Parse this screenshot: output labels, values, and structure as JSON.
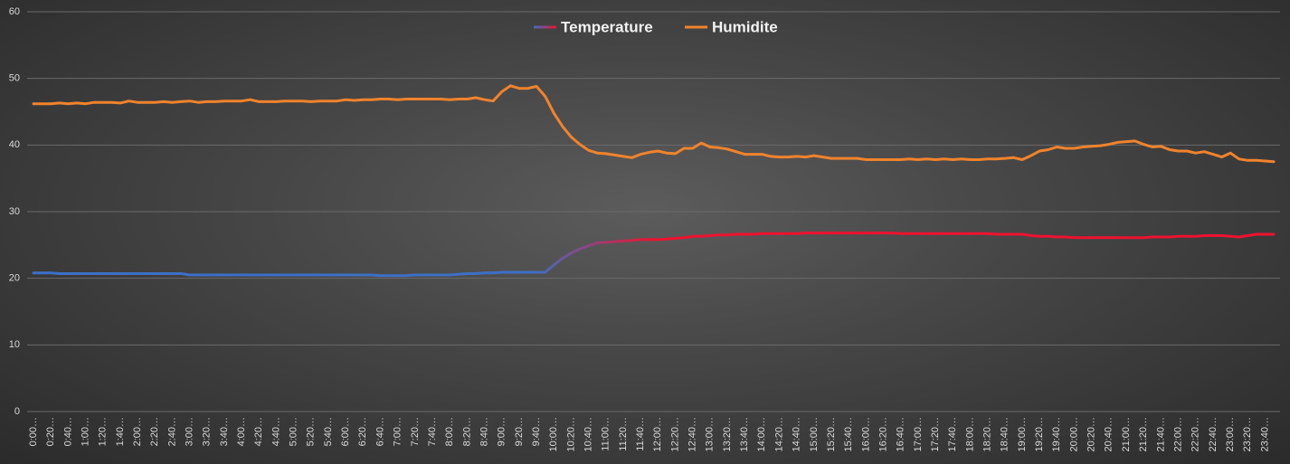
{
  "chart_data": {
    "type": "line",
    "categories": [
      "0:00…",
      null,
      "0:20…",
      null,
      "0:40…",
      null,
      "1:00…",
      null,
      "1:20…",
      null,
      "1:40…",
      null,
      "2:00…",
      null,
      "2:20…",
      null,
      "2:40…",
      null,
      "3:00…",
      null,
      "3:20…",
      null,
      "3:40…",
      null,
      "4:00…",
      null,
      "4:20…",
      null,
      "4:40…",
      null,
      "5:00…",
      null,
      "5:20…",
      null,
      "5:40…",
      null,
      "6:00…",
      null,
      "6:20…",
      null,
      "6:40…",
      null,
      "7:00…",
      null,
      "7:20…",
      null,
      "7:40…",
      null,
      "8:00…",
      null,
      "8:20…",
      null,
      "8:40…",
      null,
      "9:00…",
      null,
      "9:20…",
      null,
      "9:40…",
      null,
      "10:00…",
      null,
      "10:20…",
      null,
      "10:40…",
      null,
      "11:00…",
      null,
      "11:20…",
      null,
      "11:40…",
      null,
      "12:00…",
      null,
      "12:20…",
      null,
      "12:40…",
      null,
      "13:00…",
      null,
      "13:20…",
      null,
      "13:40…",
      null,
      "14:00…",
      null,
      "14:20…",
      null,
      "14:40…",
      null,
      "15:00…",
      null,
      "15:20…",
      null,
      "15:40…",
      null,
      "16:00…",
      null,
      "16:20…",
      null,
      "16:40…",
      null,
      "17:00…",
      null,
      "17:20…",
      null,
      "17:40…",
      null,
      "18:00…",
      null,
      "18:20…",
      null,
      "18:40…",
      null,
      "19:00…",
      null,
      "19:20…",
      null,
      "19:40…",
      null,
      "20:00…",
      null,
      "20:20…",
      null,
      "20:40…",
      null,
      "21:00…",
      null,
      "21:20…",
      null,
      "21:40…",
      null,
      "22:00…",
      null,
      "22:20…",
      null,
      "22:40…",
      null,
      "23:00…",
      null,
      "23:20…",
      null,
      "23:40…",
      null
    ],
    "series": [
      {
        "name": "Temperature",
        "gradient": [
          "#3d6fc7",
          "#ee1230"
        ],
        "values": [
          20.8,
          20.8,
          20.8,
          20.7,
          20.7,
          20.7,
          20.7,
          20.7,
          20.7,
          20.7,
          20.7,
          20.7,
          20.7,
          20.7,
          20.7,
          20.7,
          20.7,
          20.7,
          20.5,
          20.5,
          20.5,
          20.5,
          20.5,
          20.5,
          20.5,
          20.5,
          20.5,
          20.5,
          20.5,
          20.5,
          20.5,
          20.5,
          20.5,
          20.5,
          20.5,
          20.5,
          20.5,
          20.5,
          20.5,
          20.5,
          20.4,
          20.4,
          20.4,
          20.4,
          20.5,
          20.5,
          20.5,
          20.5,
          20.5,
          20.6,
          20.7,
          20.7,
          20.8,
          20.8,
          20.9,
          20.9,
          20.9,
          20.9,
          20.9,
          20.9,
          22.0,
          23.0,
          23.8,
          24.4,
          24.9,
          25.3,
          25.4,
          25.5,
          25.6,
          25.7,
          25.8,
          25.8,
          25.8,
          25.9,
          26.0,
          26.1,
          26.3,
          26.3,
          26.4,
          26.5,
          26.5,
          26.6,
          26.6,
          26.6,
          26.7,
          26.7,
          26.7,
          26.7,
          26.7,
          26.8,
          26.8,
          26.8,
          26.8,
          26.8,
          26.8,
          26.8,
          26.8,
          26.8,
          26.8,
          26.8,
          26.7,
          26.7,
          26.7,
          26.7,
          26.7,
          26.7,
          26.7,
          26.7,
          26.7,
          26.7,
          26.7,
          26.6,
          26.6,
          26.6,
          26.6,
          26.4,
          26.3,
          26.3,
          26.2,
          26.2,
          26.1,
          26.1,
          26.1,
          26.1,
          26.1,
          26.1,
          26.1,
          26.1,
          26.1,
          26.2,
          26.2,
          26.2,
          26.3,
          26.3,
          26.3,
          26.4,
          26.4,
          26.4,
          26.3,
          26.2,
          26.4,
          26.6,
          26.6,
          26.6
        ]
      },
      {
        "name": "Humidite",
        "color": "#f0832c",
        "values": [
          46.2,
          46.2,
          46.2,
          46.3,
          46.2,
          46.3,
          46.2,
          46.4,
          46.4,
          46.4,
          46.3,
          46.6,
          46.4,
          46.4,
          46.4,
          46.5,
          46.4,
          46.5,
          46.6,
          46.4,
          46.5,
          46.5,
          46.6,
          46.6,
          46.6,
          46.8,
          46.5,
          46.5,
          46.5,
          46.6,
          46.6,
          46.6,
          46.5,
          46.6,
          46.6,
          46.6,
          46.8,
          46.7,
          46.8,
          46.8,
          46.9,
          46.9,
          46.8,
          46.9,
          46.9,
          46.9,
          46.9,
          46.9,
          46.8,
          46.9,
          46.9,
          47.1,
          46.8,
          46.6,
          48.0,
          48.9,
          48.5,
          48.5,
          48.8,
          47.3,
          44.8,
          42.8,
          41.2,
          40.1,
          39.2,
          38.8,
          38.7,
          38.5,
          38.3,
          38.1,
          38.6,
          38.9,
          39.1,
          38.8,
          38.7,
          39.5,
          39.5,
          40.3,
          39.7,
          39.6,
          39.4,
          39.0,
          38.6,
          38.6,
          38.6,
          38.3,
          38.2,
          38.2,
          38.3,
          38.2,
          38.4,
          38.2,
          38.0,
          38.0,
          38.0,
          38.0,
          37.8,
          37.8,
          37.8,
          37.8,
          37.8,
          37.9,
          37.8,
          37.9,
          37.8,
          37.9,
          37.8,
          37.9,
          37.8,
          37.8,
          37.9,
          37.9,
          38.0,
          38.1,
          37.8,
          38.4,
          39.1,
          39.3,
          39.7,
          39.5,
          39.5,
          39.7,
          39.8,
          39.9,
          40.1,
          40.4,
          40.5,
          40.6,
          40.1,
          39.7,
          39.8,
          39.3,
          39.1,
          39.1,
          38.8,
          39.0,
          38.6,
          38.2,
          38.8,
          37.9,
          37.7,
          37.7,
          37.6,
          37.5
        ]
      }
    ],
    "ylim": [
      0,
      60
    ],
    "yticks": [
      0,
      10,
      20,
      30,
      40,
      50,
      60
    ],
    "grid": true,
    "legend": "top"
  }
}
